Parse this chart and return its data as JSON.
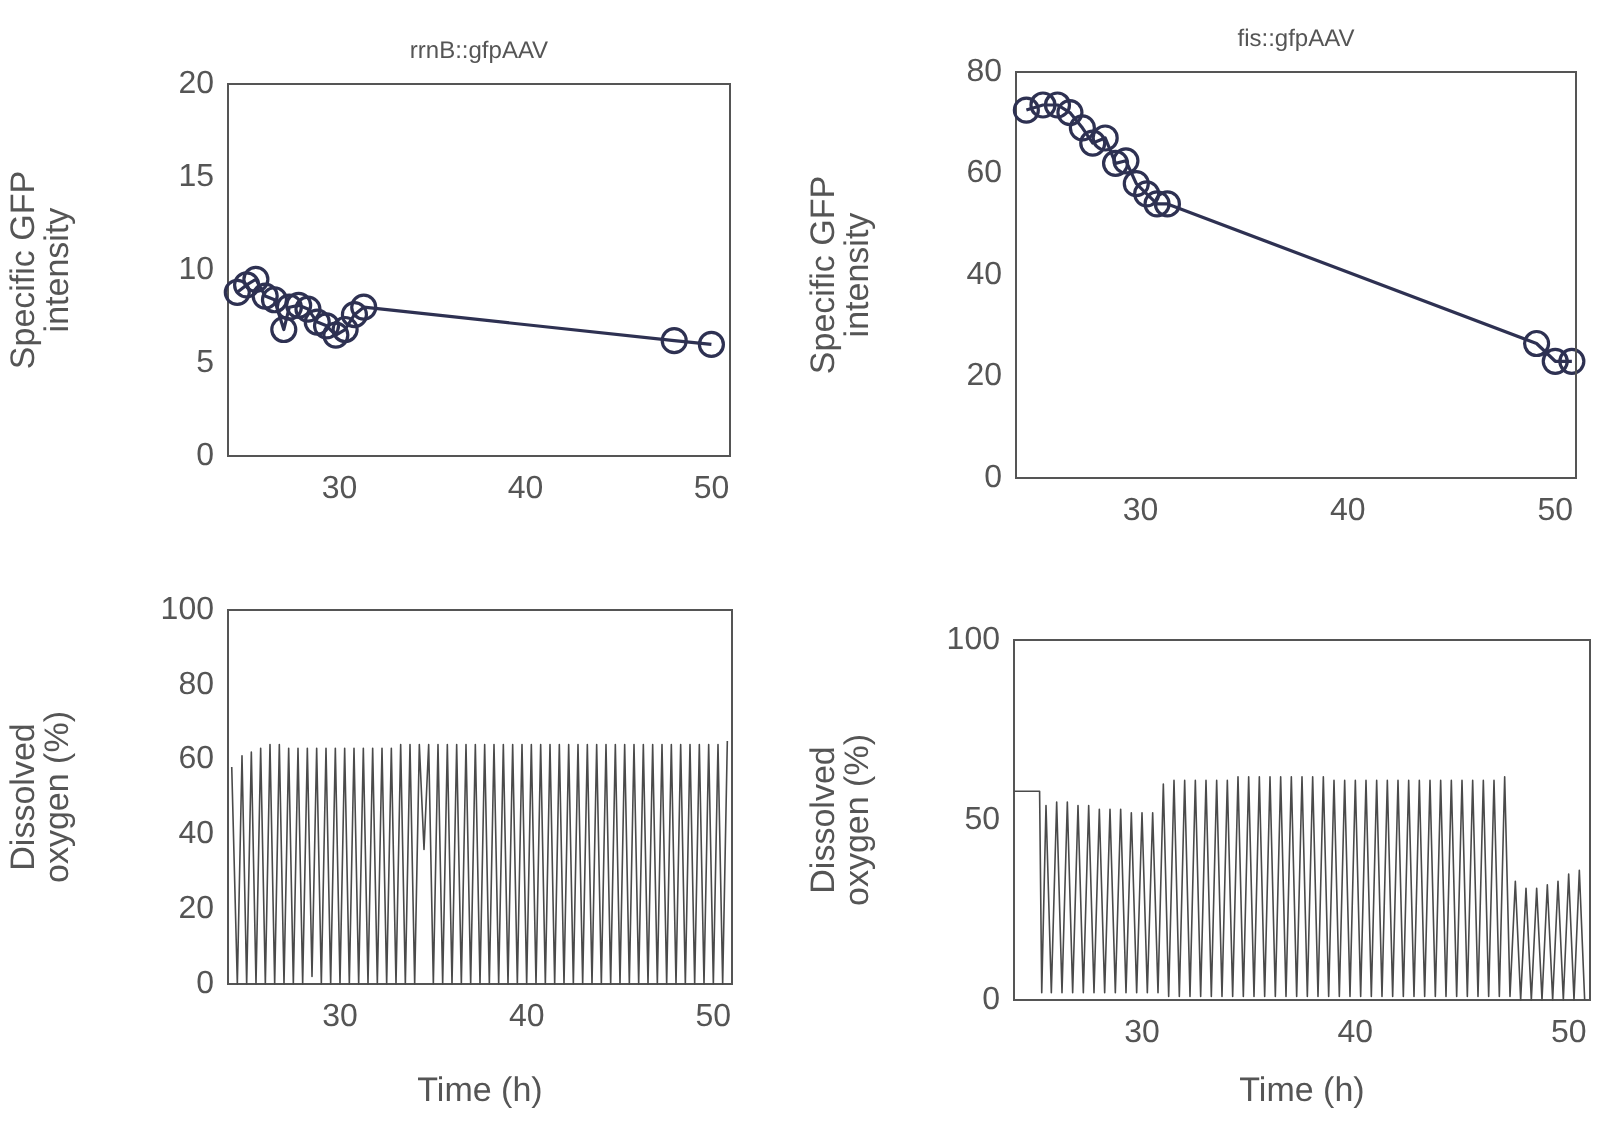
{
  "chart_data": [
    {
      "type": "line",
      "title": "rrnB::gfpAAV",
      "ylabel": "Specific GFP intensity",
      "xlim": [
        24,
        51
      ],
      "xticks": [
        30,
        40,
        50
      ],
      "ylim": [
        0,
        20
      ],
      "yticks": [
        0,
        5,
        10,
        15,
        20
      ],
      "grid": false,
      "legend": false,
      "marker": "circle",
      "line_style": "solid",
      "x": [
        24.5,
        25,
        25.5,
        26,
        26.5,
        27,
        27.3,
        27.8,
        28.3,
        28.8,
        29.3,
        29.8,
        30.3,
        30.8,
        31.3,
        48,
        50
      ],
      "series": [
        {
          "color": "#2e3152",
          "values": [
            8.8,
            9.2,
            9.5,
            8.6,
            8.4,
            6.8,
            8.0,
            8.1,
            7.9,
            7.2,
            7.0,
            6.5,
            6.8,
            7.6,
            8.0,
            6.2,
            6.0
          ]
        }
      ]
    },
    {
      "type": "line",
      "title": "fis::gfpAAV",
      "ylabel": "Specific GFP intensity",
      "xlim": [
        24,
        51
      ],
      "xticks": [
        30,
        40,
        50
      ],
      "ylim": [
        0,
        80
      ],
      "yticks": [
        0,
        20,
        40,
        60,
        80
      ],
      "grid": false,
      "legend": false,
      "marker": "circle",
      "line_style": "solid",
      "x": [
        24.5,
        25.3,
        26,
        26.6,
        27.2,
        27.7,
        28.3,
        28.8,
        29.3,
        29.8,
        30.3,
        30.8,
        31.3,
        49.1,
        50,
        50.8
      ],
      "series": [
        {
          "color": "#2e3152",
          "values": [
            72.5,
            73.5,
            73.5,
            72,
            69,
            66,
            67,
            62,
            62.5,
            58,
            56,
            54,
            54,
            26.5,
            23,
            23
          ]
        }
      ]
    },
    {
      "type": "line",
      "ylabel": "Dissolved oxygen (%)",
      "xlabel": "Time (h)",
      "xlim": [
        24,
        51
      ],
      "xticks": [
        30,
        40,
        50
      ],
      "ylim": [
        0,
        100
      ],
      "yticks": [
        0,
        20,
        40,
        60,
        80,
        100
      ],
      "grid": false,
      "legend": false,
      "marker": "none",
      "line_style": "solid",
      "x": [
        24.2,
        24.5,
        24.75,
        25,
        25.25,
        25.5,
        25.75,
        26,
        26.25,
        26.5,
        26.75,
        27,
        27.25,
        27.5,
        27.75,
        28,
        28.25,
        28.5,
        28.75,
        29,
        29.25,
        29.5,
        29.75,
        30,
        30.25,
        30.5,
        30.75,
        31,
        31.25,
        31.5,
        31.75,
        32,
        32.25,
        32.5,
        32.75,
        33,
        33.25,
        33.5,
        33.75,
        34,
        34.25,
        34.5,
        34.75,
        35,
        35.25,
        35.5,
        35.75,
        36,
        36.25,
        36.5,
        36.75,
        37,
        37.25,
        37.5,
        37.75,
        38,
        38.25,
        38.5,
        38.75,
        39,
        39.25,
        39.5,
        39.75,
        40,
        40.25,
        40.5,
        40.75,
        41,
        41.25,
        41.5,
        41.75,
        42,
        42.25,
        42.5,
        42.75,
        43,
        43.25,
        43.5,
        43.75,
        44,
        44.25,
        44.5,
        44.75,
        45,
        45.25,
        45.5,
        45.75,
        46,
        46.25,
        46.5,
        46.75,
        47,
        47.25,
        47.5,
        47.75,
        48,
        48.25,
        48.5,
        48.75,
        49,
        49.25,
        49.5,
        49.75,
        50,
        50.25,
        50.5,
        50.75
      ],
      "series": [
        {
          "color": "#4a4a4a",
          "values": [
            58,
            0,
            61,
            0,
            62,
            0,
            63,
            0,
            64,
            0,
            64,
            0,
            63,
            0,
            63,
            0,
            63,
            2,
            63,
            0,
            63,
            0,
            63,
            0,
            63,
            0,
            63,
            0,
            63,
            0,
            63,
            0,
            63,
            0,
            63,
            0,
            64,
            0,
            64,
            0,
            64,
            36,
            64,
            0,
            64,
            0,
            64,
            0,
            64,
            0,
            64,
            0,
            64,
            0,
            64,
            0,
            64,
            0,
            64,
            0,
            64,
            0,
            64,
            0,
            64,
            0,
            64,
            0,
            64,
            0,
            64,
            0,
            64,
            0,
            64,
            0,
            64,
            0,
            64,
            0,
            64,
            0,
            64,
            0,
            64,
            0,
            64,
            0,
            64,
            0,
            64,
            0,
            64,
            0,
            64,
            0,
            64,
            0,
            64,
            0,
            64,
            0,
            64,
            0,
            64,
            0,
            65
          ]
        }
      ]
    },
    {
      "type": "line",
      "ylabel": "Dissolved oxygen (%)",
      "xlabel": "Time (h)",
      "xlim": [
        24,
        51
      ],
      "xticks": [
        30,
        40,
        50
      ],
      "ylim": [
        0,
        100
      ],
      "yticks": [
        0,
        50,
        100
      ],
      "grid": false,
      "legend": false,
      "marker": "none",
      "line_style": "solid",
      "x": [
        24,
        25.2,
        25.3,
        25.5,
        25.75,
        26,
        26.25,
        26.5,
        26.75,
        27,
        27.25,
        27.5,
        27.75,
        28,
        28.25,
        28.5,
        28.75,
        29,
        29.25,
        29.5,
        29.75,
        30,
        30.25,
        30.5,
        30.75,
        31,
        31.25,
        31.5,
        31.75,
        32,
        32.25,
        32.5,
        32.75,
        33,
        33.25,
        33.5,
        33.75,
        34,
        34.25,
        34.5,
        34.75,
        35,
        35.25,
        35.5,
        35.75,
        36,
        36.25,
        36.5,
        36.75,
        37,
        37.25,
        37.5,
        37.75,
        38,
        38.25,
        38.5,
        38.75,
        39,
        39.25,
        39.5,
        39.75,
        40,
        40.25,
        40.5,
        40.75,
        41,
        41.25,
        41.5,
        41.75,
        42,
        42.25,
        42.5,
        42.75,
        43,
        43.25,
        43.5,
        43.75,
        44,
        44.25,
        44.5,
        44.75,
        45,
        45.25,
        45.5,
        45.75,
        46,
        46.25,
        46.5,
        46.75,
        47,
        47.25,
        47.5,
        47.75,
        48,
        48.25,
        48.5,
        48.75,
        49,
        49.25,
        49.5,
        49.75,
        50,
        50.25,
        50.5,
        50.75
      ],
      "series": [
        {
          "color": "#4a4a4a",
          "values": [
            58,
            58,
            2,
            54,
            2,
            55,
            2,
            55,
            2,
            54,
            2,
            54,
            2,
            53,
            2,
            53,
            2,
            53,
            2,
            52,
            2,
            52,
            2,
            52,
            2,
            60,
            1,
            61,
            1,
            61,
            1,
            61,
            1,
            61,
            1,
            61,
            1,
            61,
            1,
            62,
            1,
            62,
            1,
            62,
            1,
            62,
            1,
            62,
            1,
            62,
            1,
            62,
            1,
            62,
            1,
            62,
            1,
            61,
            1,
            61,
            1,
            61,
            1,
            61,
            1,
            61,
            1,
            61,
            1,
            61,
            1,
            61,
            1,
            61,
            1,
            61,
            1,
            61,
            1,
            61,
            1,
            61,
            1,
            61,
            1,
            61,
            1,
            61,
            1,
            62,
            1,
            33,
            0,
            31,
            0,
            31,
            0,
            32,
            0,
            33,
            0,
            35,
            0,
            36,
            0
          ]
        }
      ]
    }
  ]
}
